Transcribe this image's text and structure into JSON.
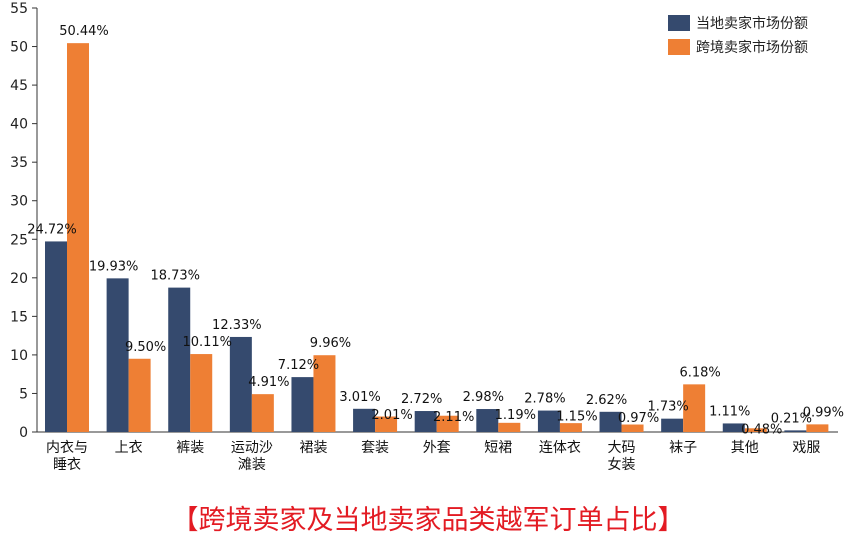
{
  "chart_data": {
    "type": "bar",
    "categories": [
      [
        "内衣与",
        "睡衣"
      ],
      [
        "上衣"
      ],
      [
        "裤装"
      ],
      [
        "运动沙",
        "滩装"
      ],
      [
        "裙装"
      ],
      [
        "套装"
      ],
      [
        "外套"
      ],
      [
        "短裙"
      ],
      [
        "连体衣"
      ],
      [
        "大码",
        "女装"
      ],
      [
        "袜子"
      ],
      [
        "其他"
      ],
      [
        "戏服"
      ]
    ],
    "series": [
      {
        "name": "当地卖家市场份额",
        "color": "#354a6e",
        "values": [
          24.72,
          19.93,
          18.73,
          12.33,
          7.12,
          3.01,
          2.72,
          2.98,
          2.78,
          2.62,
          1.73,
          1.11,
          0.21
        ],
        "labels": [
          "24.72%",
          "19.93%",
          "18.73%",
          "12.33%",
          "7.12%",
          "3.01%",
          "2.72%",
          "2.98%",
          "2.78%",
          "2.62%",
          "1.73%",
          "1.11%",
          "0.21%"
        ]
      },
      {
        "name": "跨境卖家市场份额",
        "color": "#ee7f34",
        "values": [
          50.44,
          9.5,
          10.11,
          4.91,
          9.96,
          2.01,
          2.11,
          1.19,
          1.15,
          0.97,
          6.18,
          0.48,
          0.99
        ],
        "labels": [
          "50.44%",
          "9.50%",
          "10.11%",
          "4.91%",
          "9.96%",
          "2.01%",
          "2.11%",
          "1.19%",
          "1.15%",
          "0.97%",
          "6.18%",
          "0.48%",
          "0.99%"
        ]
      }
    ],
    "ylim": [
      0,
      55
    ],
    "yticks": [
      "0",
      "5",
      "10",
      "15",
      "20",
      "25",
      "30",
      "35",
      "40",
      "45",
      "50",
      "55"
    ],
    "legend_position": "top-right",
    "grid": false
  },
  "caption": "【跨境卖家及当地卖家品类越军订单占比】"
}
